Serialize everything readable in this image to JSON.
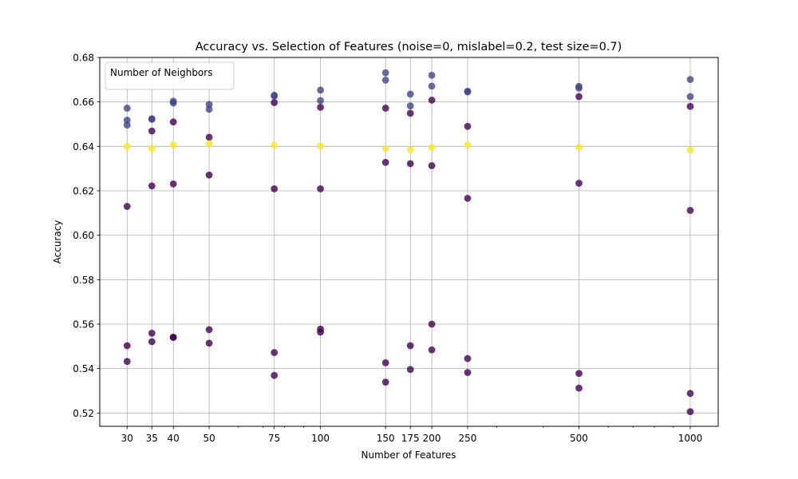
{
  "chart_data": {
    "type": "scatter",
    "title": "Accuracy vs. Selection of Features (noise=0, mislabel=0.2, test size=0.7)",
    "xlabel": "Number of Features",
    "ylabel": "Accuracy",
    "x_scale": "log",
    "xlim": [
      25.3,
      1190
    ],
    "ylim": [
      0.514,
      0.68
    ],
    "x_ticks": [
      30,
      35,
      40,
      50,
      75,
      100,
      150,
      175,
      200,
      250,
      500,
      1000
    ],
    "x_tick_labels": [
      "30",
      "35",
      "40",
      "50",
      "75",
      "100",
      "150",
      "175",
      "200",
      "250",
      "500",
      "1000"
    ],
    "y_ticks": [
      0.52,
      0.54,
      0.56,
      0.58,
      0.6,
      0.62,
      0.64,
      0.66,
      0.68
    ],
    "y_tick_labels": [
      "0.52",
      "0.54",
      "0.56",
      "0.58",
      "0.60",
      "0.62",
      "0.64",
      "0.66",
      "0.68"
    ],
    "grid": true,
    "legend": {
      "title": "Number of Neighbors",
      "placement": "top-left",
      "entries": []
    },
    "colors": {
      "dark_purple": "#440154",
      "purple": "#3b2b74",
      "slate_blue": "#414487",
      "yellow": "#fde725",
      "grid": "#b0b0b0"
    },
    "point_alpha": 0.8,
    "series": [
      {
        "color": "dark_purple",
        "points": [
          [
            30,
            0.613
          ],
          [
            30,
            0.5503
          ],
          [
            30,
            0.5432
          ],
          [
            35,
            0.6469
          ],
          [
            35,
            0.6222
          ],
          [
            35,
            0.5559
          ],
          [
            35,
            0.5521
          ],
          [
            40,
            0.651
          ],
          [
            40,
            0.6231
          ],
          [
            40,
            0.554
          ],
          [
            40,
            0.5541
          ],
          [
            50,
            0.6441
          ],
          [
            50,
            0.6271
          ],
          [
            50,
            0.5575
          ],
          [
            50,
            0.5514
          ],
          [
            75,
            0.6597
          ],
          [
            75,
            0.6209
          ],
          [
            75,
            0.5472
          ],
          [
            75,
            0.5369
          ],
          [
            100,
            0.6576
          ],
          [
            100,
            0.6209
          ],
          [
            100,
            0.5578
          ],
          [
            100,
            0.5564
          ],
          [
            150,
            0.6572
          ],
          [
            150,
            0.6328
          ],
          [
            150,
            0.5426
          ],
          [
            150,
            0.5339
          ],
          [
            175,
            0.6549
          ],
          [
            175,
            0.6322
          ],
          [
            175,
            0.5503
          ],
          [
            175,
            0.5396
          ],
          [
            200,
            0.6608
          ],
          [
            200,
            0.6313
          ],
          [
            200,
            0.56
          ],
          [
            200,
            0.5484
          ],
          [
            250,
            0.649
          ],
          [
            250,
            0.6166
          ],
          [
            250,
            0.5445
          ],
          [
            250,
            0.5382
          ],
          [
            500,
            0.6624
          ],
          [
            500,
            0.6234
          ],
          [
            500,
            0.5378
          ],
          [
            500,
            0.5312
          ],
          [
            1000,
            0.658
          ],
          [
            1000,
            0.6112
          ],
          [
            1000,
            0.5288
          ],
          [
            1000,
            0.5206
          ]
        ]
      },
      {
        "color": "slate_blue",
        "points": [
          [
            30,
            0.6572
          ],
          [
            30,
            0.6518
          ],
          [
            30,
            0.6496
          ],
          [
            35,
            0.6524
          ],
          [
            35,
            0.6522
          ],
          [
            40,
            0.6603
          ],
          [
            40,
            0.6595
          ],
          [
            50,
            0.6589
          ],
          [
            50,
            0.6567
          ],
          [
            75,
            0.663
          ],
          [
            75,
            0.6626
          ],
          [
            100,
            0.6653
          ],
          [
            100,
            0.6606
          ],
          [
            150,
            0.6731
          ],
          [
            150,
            0.6698
          ],
          [
            175,
            0.6635
          ],
          [
            175,
            0.6582
          ],
          [
            200,
            0.672
          ],
          [
            200,
            0.6671
          ],
          [
            250,
            0.6648
          ],
          [
            250,
            0.6645
          ],
          [
            500,
            0.667
          ],
          [
            500,
            0.6662
          ],
          [
            1000,
            0.6701
          ],
          [
            1000,
            0.6624
          ]
        ]
      },
      {
        "color": "yellow",
        "points": [
          [
            30,
            0.64
          ],
          [
            35,
            0.639
          ],
          [
            40,
            0.6407
          ],
          [
            50,
            0.6412
          ],
          [
            75,
            0.6406
          ],
          [
            100,
            0.6402
          ],
          [
            150,
            0.639
          ],
          [
            175,
            0.6385
          ],
          [
            200,
            0.6395
          ],
          [
            250,
            0.6406
          ],
          [
            500,
            0.6396
          ],
          [
            1000,
            0.6384
          ]
        ]
      }
    ]
  }
}
